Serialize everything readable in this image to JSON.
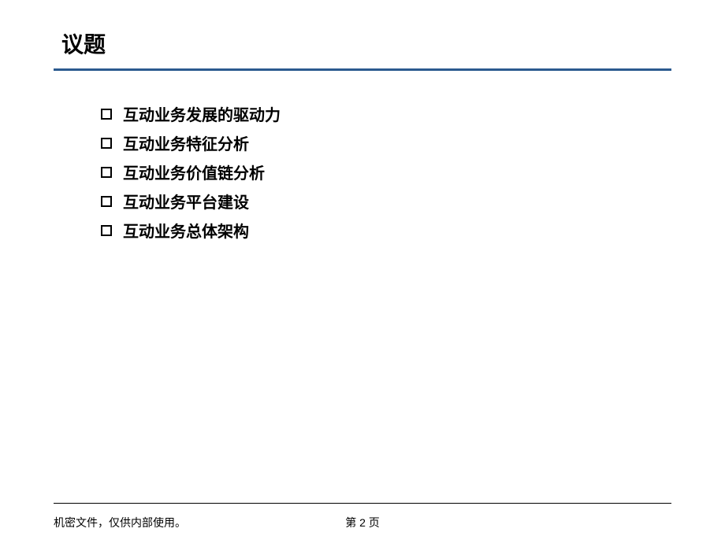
{
  "slide": {
    "title": "议题",
    "title_color": "#000000",
    "title_fontsize": 28,
    "divider_color": "#2b5a8f",
    "background_color": "#ffffff",
    "bullets": [
      "互动业务发展的驱动力",
      "互动业务特征分析",
      "互动业务价值链分析",
      "互动业务平台建设",
      "互动业务总体架构"
    ],
    "bullet_marker_type": "hollow-square",
    "bullet_fontsize": 20,
    "bullet_color": "#000000"
  },
  "footer": {
    "confidential_text": "机密文件，仅供内部使用。",
    "page_label": "第 2 页",
    "divider_color": "#000000",
    "fontsize": 14
  }
}
